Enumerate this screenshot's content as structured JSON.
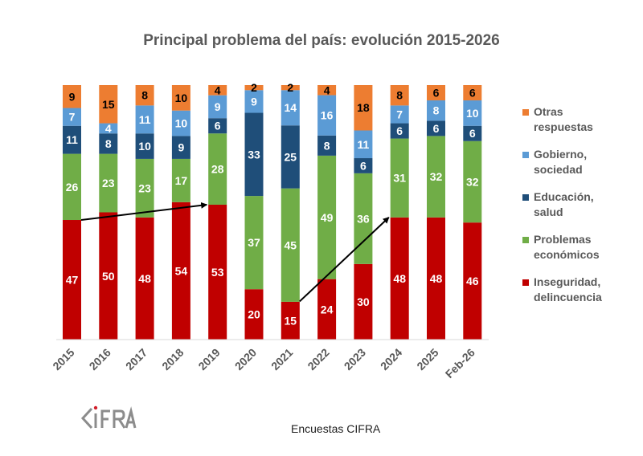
{
  "chart_data": {
    "type": "bar",
    "stacked": true,
    "title": "Principal problema del país: evolución 2015-2026",
    "xlabel": "",
    "ylabel": "",
    "ylim": [
      0,
      100
    ],
    "grid": false,
    "legend_position": "right",
    "categories": [
      "2015",
      "2016",
      "2017",
      "2018",
      "2019",
      "2020",
      "2021",
      "2022",
      "2023",
      "2024",
      "2025",
      "Feb-26"
    ],
    "series": [
      {
        "name": "Inseguridad, delincuencia",
        "label": "Inseguridad,\ndelincuencia",
        "color": "#C00000",
        "label_color": "#ffffff",
        "values": [
          47,
          50,
          48,
          54,
          53,
          20,
          15,
          24,
          30,
          48,
          48,
          46
        ]
      },
      {
        "name": "Problemas económicos",
        "label": "Problemas\neconómicos",
        "color": "#70AD47",
        "label_color": "#ffffff",
        "values": [
          26,
          23,
          23,
          17,
          28,
          37,
          45,
          49,
          36,
          31,
          32,
          32
        ]
      },
      {
        "name": "Educación, salud",
        "label": "Educación,\nsalud",
        "color": "#1F4E79",
        "label_color": "#ffffff",
        "values": [
          11,
          8,
          10,
          9,
          6,
          33,
          25,
          8,
          6,
          6,
          6,
          6
        ]
      },
      {
        "name": "Gobierno, sociedad",
        "label": "Gobierno,\nsociedad",
        "color": "#5B9BD5",
        "label_color": "#ffffff",
        "values": [
          7,
          4,
          11,
          10,
          9,
          9,
          14,
          16,
          11,
          7,
          8,
          10
        ]
      },
      {
        "name": "Otras respuestas",
        "label": "Otras\nrespuestas",
        "color": "#ED7D31",
        "label_color": "#000000",
        "values": [
          9,
          15,
          8,
          10,
          4,
          2,
          2,
          4,
          18,
          8,
          6,
          6
        ]
      }
    ],
    "annotations": [
      {
        "type": "arrow",
        "from": {
          "category": "2015",
          "value": 47
        },
        "to": {
          "category": "2019",
          "value": 53
        }
      },
      {
        "type": "arrow",
        "from": {
          "category": "2021",
          "value": 15
        },
        "to": {
          "category": "2024",
          "value": 48
        }
      }
    ]
  },
  "footer": {
    "source": "Encuestas CIFRA",
    "logo_text": "CIFRA"
  }
}
